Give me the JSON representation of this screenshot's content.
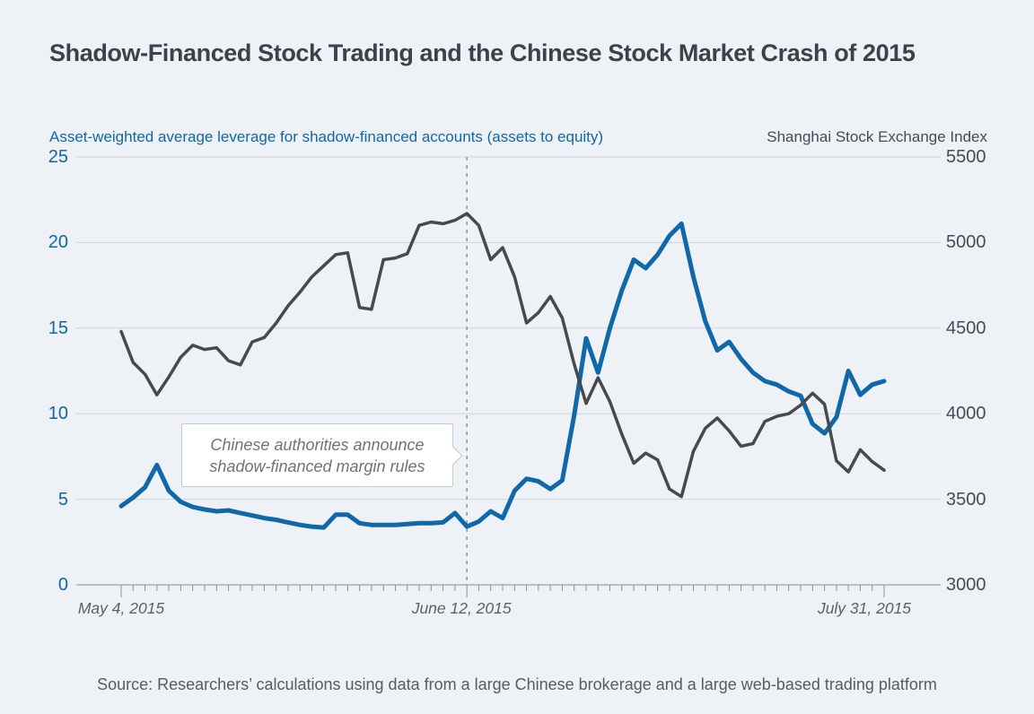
{
  "title": "Shadow-Financed Stock Trading and the Chinese Stock Market Crash of 2015",
  "axis_titles": {
    "left": "Asset-weighted average leverage for shadow-financed accounts (assets to equity)",
    "right": "Shanghai Stock Exchange Index"
  },
  "annotation": {
    "line1": "Chinese authorities announce",
    "line2": "shadow-financed margin rules"
  },
  "source": "Source: Researchers’ calculations using data from a large Chinese brokerage and a large web-based trading platform",
  "colors": {
    "background": "#eef1f5",
    "leverage_line": "#0f68a9",
    "index_line": "#46494e",
    "title_text": "#3a424c",
    "gridline": "#cfd4d8",
    "axis_line": "#9aa0a5",
    "tick_mark": "#8d9399",
    "event_line": "#8e959b",
    "date_label": "#5c6268",
    "annotation_text": "#6e747a",
    "annotation_border": "#c5cacd",
    "source_text": "#565c62"
  },
  "chart_data": {
    "type": "line",
    "title": "Shadow-Financed Stock Trading and the Chinese Stock Market Crash of 2015",
    "n_points": 65,
    "x_unit": "trading days, May 4 2015 – July 31 2015",
    "grid": true,
    "legend_position": "axis-titles",
    "event_line_index": 29,
    "event_label": "Chinese authorities announce shadow-financed margin rules",
    "x_tick_labels": [
      {
        "label": "May 4, 2015",
        "index": 0,
        "dx": 0
      },
      {
        "label": "June 12, 2015",
        "index": 29,
        "dx": -6
      },
      {
        "label": "July 31, 2015",
        "index": 64,
        "dx": -22
      }
    ],
    "left_axis": {
      "label": "Asset-weighted average leverage for shadow-financed accounts (assets to equity)",
      "min": 0,
      "max": 25,
      "ticks": [
        25,
        20,
        15,
        10,
        5,
        0
      ]
    },
    "right_axis": {
      "label": "Shanghai Stock Exchange Index",
      "min": 3000,
      "max": 5500,
      "ticks": [
        5500,
        5000,
        4500,
        4000,
        3500,
        3000
      ]
    },
    "series": [
      {
        "name": "Asset-weighted average leverage for shadow-financed accounts (assets to equity)",
        "axis": "left",
        "color": "#0f68a9",
        "stroke_width": 5,
        "values": [
          4.6,
          5.1,
          5.7,
          7.0,
          5.5,
          4.85,
          4.55,
          4.4,
          4.3,
          4.35,
          4.2,
          4.05,
          3.9,
          3.8,
          3.65,
          3.5,
          3.4,
          3.35,
          4.1,
          4.1,
          3.6,
          3.5,
          3.5,
          3.5,
          3.55,
          3.6,
          3.6,
          3.65,
          4.2,
          3.4,
          3.7,
          4.3,
          3.9,
          5.5,
          6.2,
          6.05,
          5.6,
          6.1,
          9.9,
          14.4,
          12.4,
          15.0,
          17.2,
          19.0,
          18.5,
          19.3,
          20.4,
          21.1,
          18.0,
          15.4,
          13.7,
          14.2,
          13.2,
          12.4,
          11.9,
          11.7,
          11.3,
          11.05,
          9.4,
          8.85,
          9.8,
          12.5,
          11.1,
          11.7,
          11.9
        ]
      },
      {
        "name": "Shanghai Stock Exchange Index",
        "axis": "right",
        "color": "#46494e",
        "stroke_width": 3.5,
        "values": [
          4480,
          4300,
          4230,
          4110,
          4215,
          4330,
          4400,
          4375,
          4385,
          4310,
          4285,
          4420,
          4445,
          4530,
          4630,
          4710,
          4800,
          4865,
          4930,
          4940,
          4620,
          4610,
          4900,
          4910,
          4935,
          5100,
          5120,
          5110,
          5130,
          5170,
          5100,
          4900,
          4970,
          4800,
          4530,
          4590,
          4685,
          4560,
          4290,
          4060,
          4210,
          4070,
          3880,
          3710,
          3770,
          3730,
          3560,
          3515,
          3780,
          3915,
          3975,
          3900,
          3810,
          3825,
          3955,
          3985,
          4000,
          4050,
          4120,
          4055,
          3725,
          3660,
          3790,
          3720,
          3670
        ]
      }
    ]
  }
}
